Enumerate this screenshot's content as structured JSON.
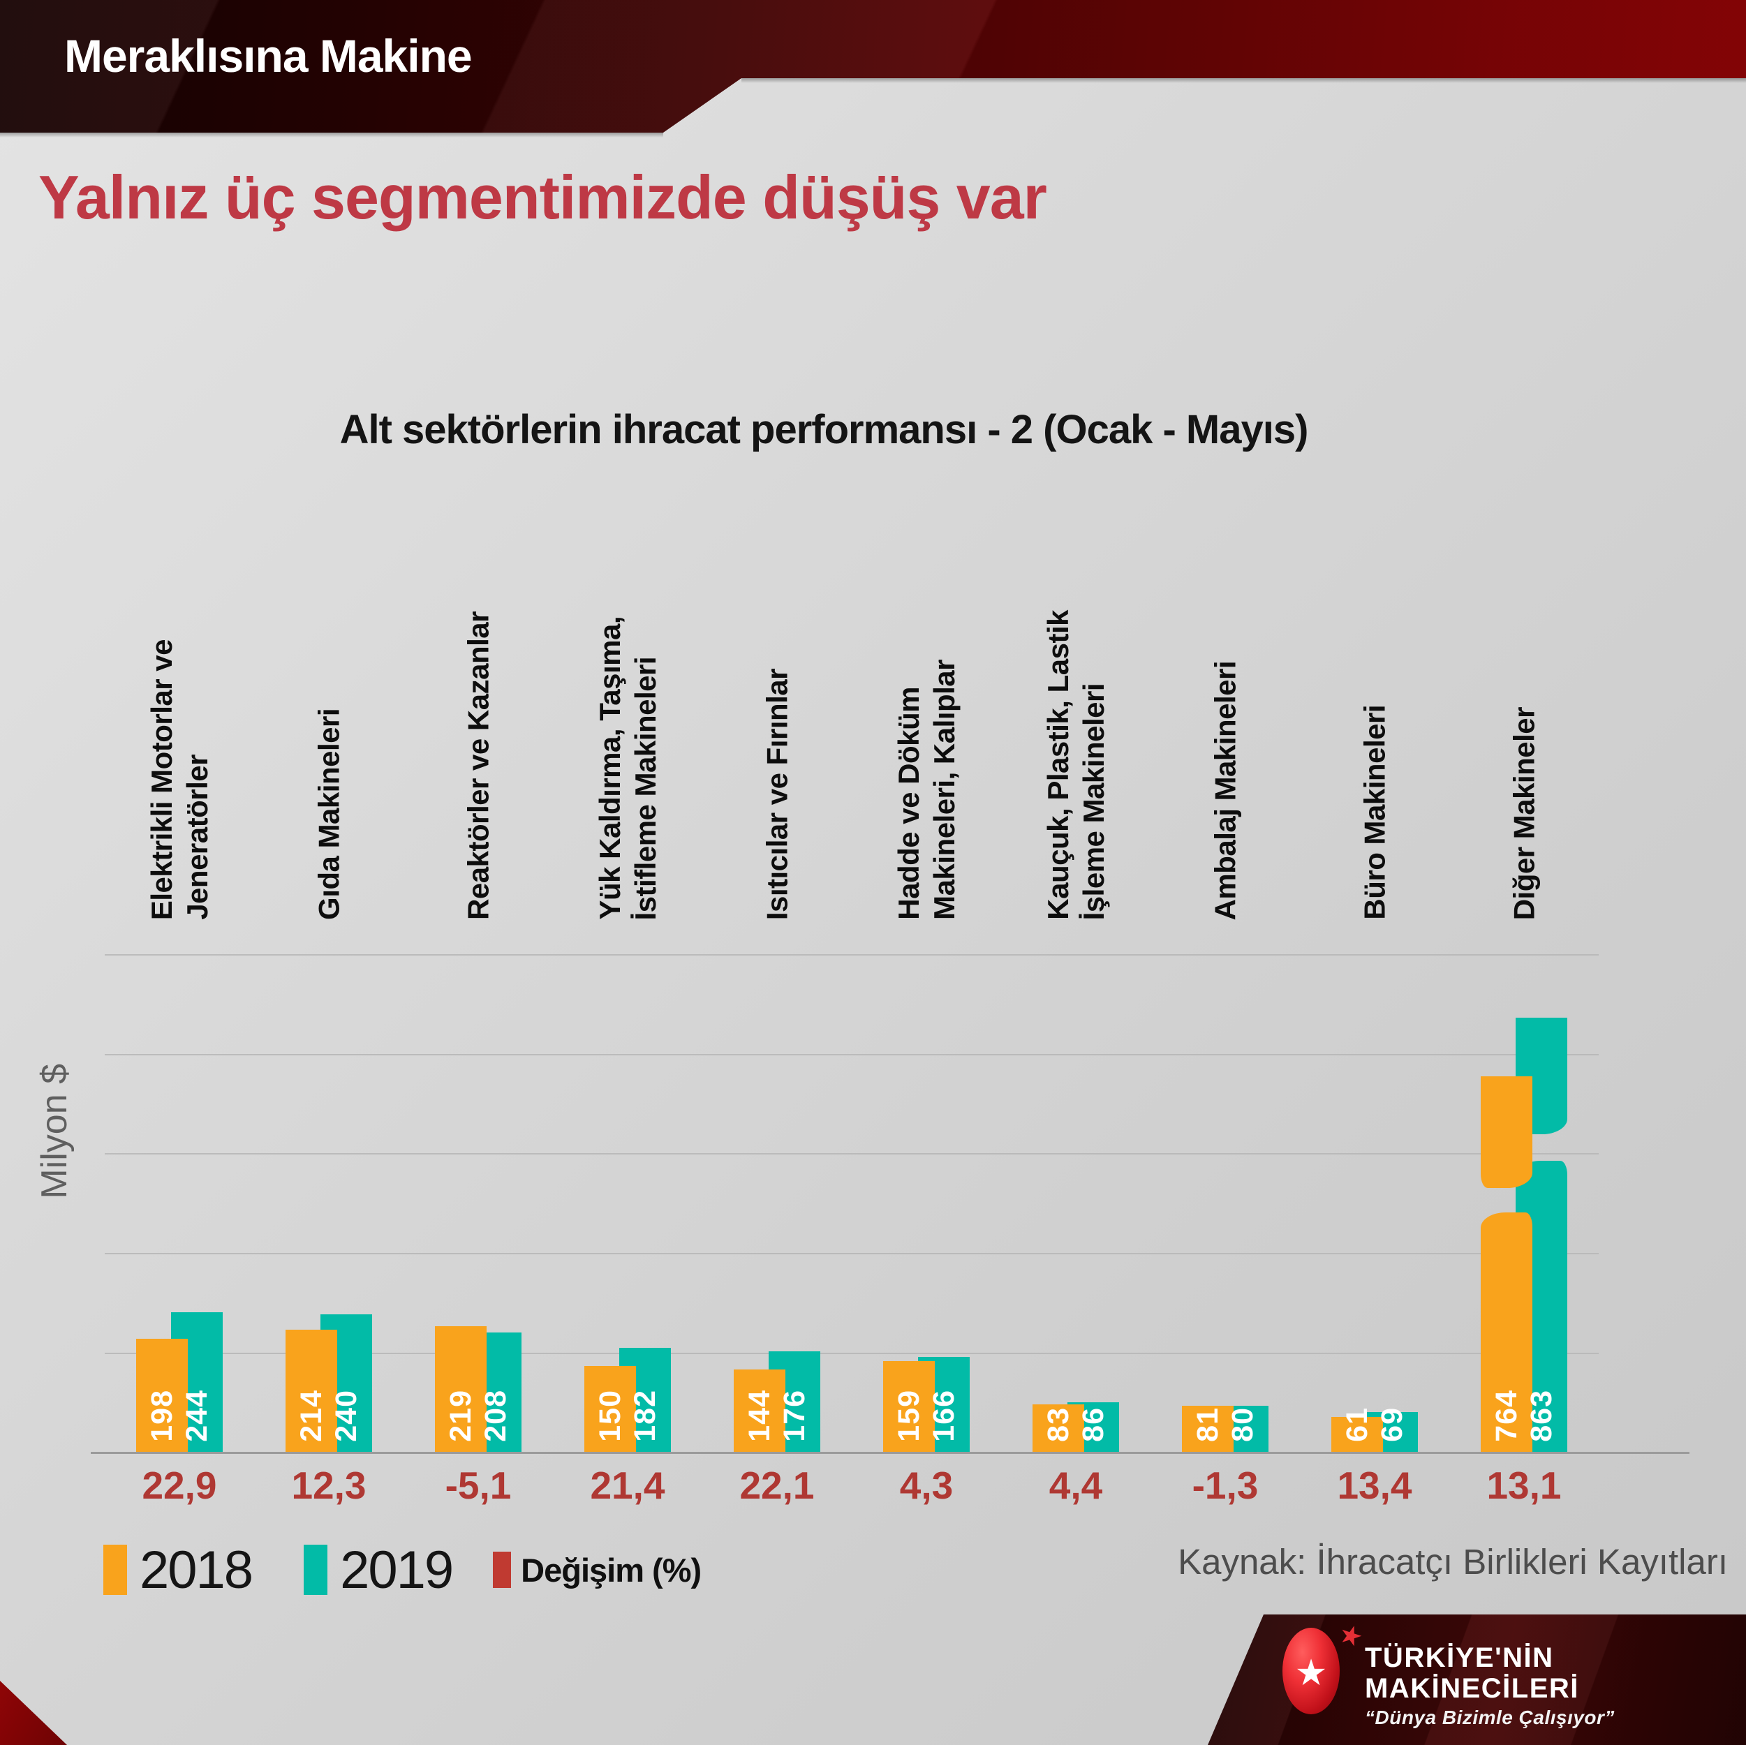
{
  "header": {
    "title": "Meraklısına Makine"
  },
  "page_title": "Yalnız üç segmentimizde düşüş var",
  "source": "Kaynak: İhracatçı Birlikleri Kayıtları",
  "colors": {
    "accent_red_title": "#BE3945",
    "y2018": "#F9A31C",
    "y2019": "#02BBA7",
    "change_text": "#AF3833",
    "legend_change_swatch": "#C03A31"
  },
  "chart_data": {
    "type": "bar",
    "title": "Alt sektörlerin ihracat performansı - 2 (Ocak - Mayıs)",
    "ylabel": "Milyon $",
    "grid": "horizontal",
    "legend_position": "bottom-left",
    "axis_break_category_index": 9,
    "categories": [
      [
        "Elektrikli Motorlar ve",
        "Jeneratörler"
      ],
      [
        "Gıda Makineleri"
      ],
      [
        "Reaktörler ve Kazanlar"
      ],
      [
        "Yük Kaldırma, Taşıma,",
        "İstifleme Makineleri"
      ],
      [
        "Isıtıcılar ve Fırınlar"
      ],
      [
        "Hadde ve Döküm",
        "Makineleri, Kalıplar"
      ],
      [
        "Kauçuk, Plastik, Lastik",
        "İşleme Makineleri"
      ],
      [
        "Ambalaj Makineleri"
      ],
      [
        "Büro Makineleri"
      ],
      [
        "Diğer Makineler"
      ]
    ],
    "series": [
      {
        "name": "2018",
        "values": [
          198,
          214,
          219,
          150,
          144,
          159,
          83,
          81,
          61,
          764
        ]
      },
      {
        "name": "2019",
        "values": [
          244,
          240,
          208,
          182,
          176,
          166,
          86,
          80,
          69,
          863
        ]
      }
    ],
    "changes": [
      "22,9",
      "12,3",
      "-5,1",
      "21,4",
      "22,1",
      "4,3",
      "4,4",
      "-1,3",
      "13,4",
      "13,1"
    ],
    "legend": [
      "2018",
      "2019",
      "Değişim (%)"
    ]
  },
  "logo": {
    "line1": "TÜRKİYE'NİN",
    "line2": "MAKİNECİLERİ",
    "tagline": "“Dünya Bizimle Çalışıyor”"
  }
}
